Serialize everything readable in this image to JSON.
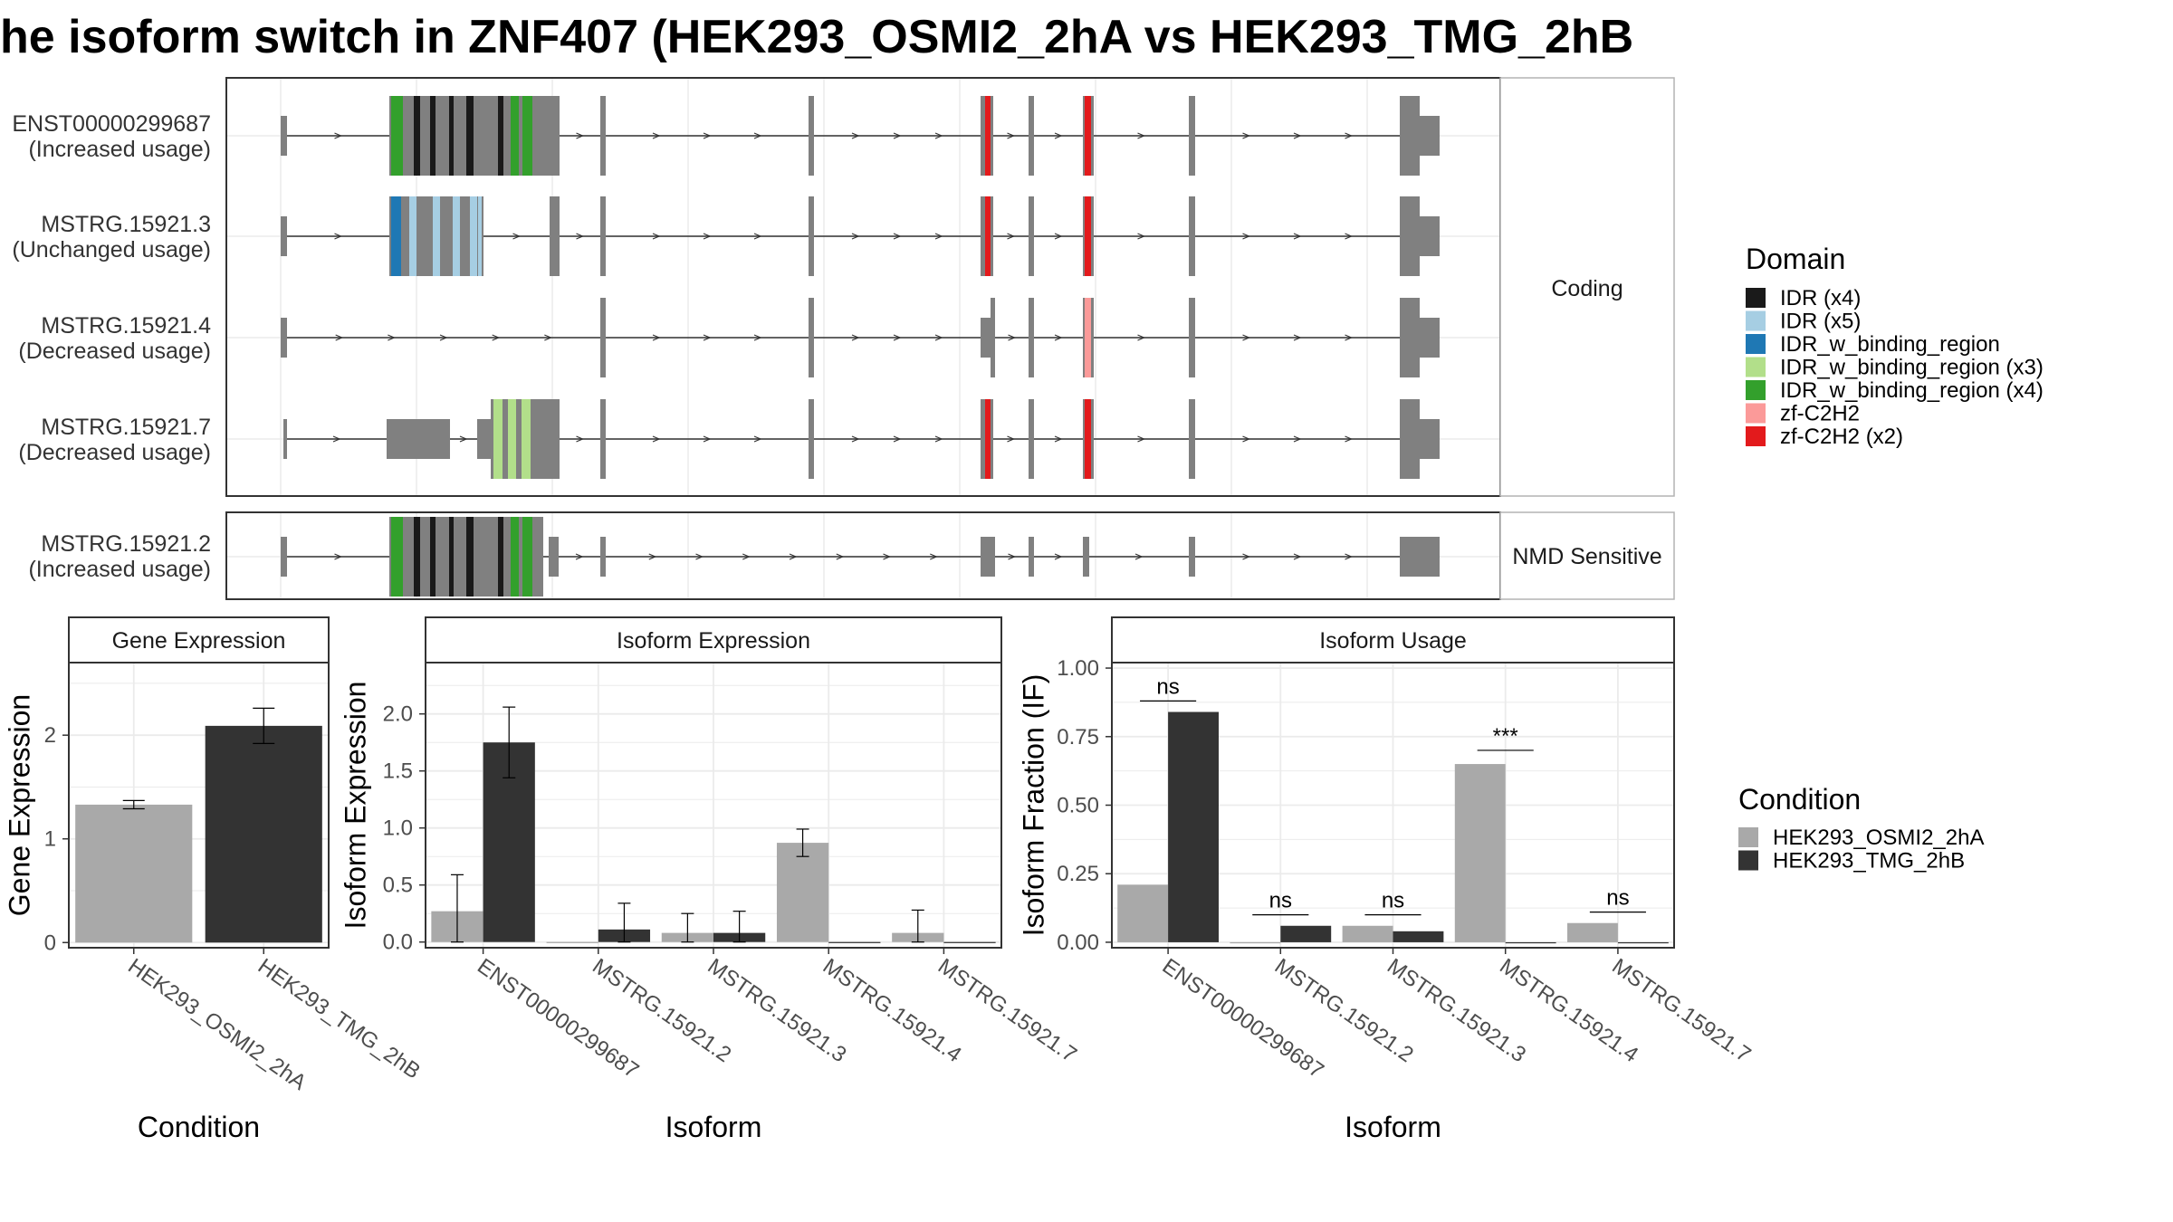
{
  "title": "he isoform switch in ZNF407 (HEK293_OSMI2_2hA vs HEK293_TMG_2hB",
  "colors": {
    "exon": "#808080",
    "osmi": "#A9A9A9",
    "tmg": "#333333",
    "panel_border": "#333333",
    "strip_border": "#b3b3b3",
    "grid": "#ebebeb"
  },
  "domain_legend": {
    "title": "Domain",
    "items": [
      {
        "label": "IDR (x4)",
        "color": "#1a1a1a"
      },
      {
        "label": "IDR (x5)",
        "color": "#a6cee3"
      },
      {
        "label": "IDR_w_binding_region",
        "color": "#1f78b4"
      },
      {
        "label": "IDR_w_binding_region (x3)",
        "color": "#b2df8a"
      },
      {
        "label": "IDR_w_binding_region (x4)",
        "color": "#33a02c"
      },
      {
        "label": "zf-C2H2",
        "color": "#fb9a99"
      },
      {
        "label": "zf-C2H2 (x2)",
        "color": "#e31a1c"
      }
    ]
  },
  "condition_legend": {
    "title": "Condition",
    "items": [
      {
        "label": "HEK293_OSMI2_2hA",
        "color": "#A9A9A9"
      },
      {
        "label": "HEK293_TMG_2hB",
        "color": "#333333"
      }
    ]
  },
  "transcripts": {
    "groups": [
      {
        "label": "Coding",
        "tracks": [
          {
            "id": "ENST00000299687",
            "status": "(Increased usage)"
          },
          {
            "id": "MSTRG.15921.3",
            "status": "(Unchanged usage)"
          },
          {
            "id": "MSTRG.15921.4",
            "status": "(Decreased usage)"
          },
          {
            "id": "MSTRG.15921.7",
            "status": "(Decreased usage)"
          }
        ]
      },
      {
        "label": "NMD Sensitive",
        "tracks": [
          {
            "id": "MSTRG.15921.2",
            "status": "(Increased usage)"
          }
        ]
      }
    ]
  },
  "chart_data": [
    {
      "type": "bar",
      "title": "Gene Expression",
      "xlabel": "Condition",
      "ylabel": "Gene Expression",
      "categories": [
        "HEK293_OSMI2_2hA",
        "HEK293_TMG_2hB"
      ],
      "values": [
        1.33,
        2.09
      ],
      "errors": [
        [
          1.29,
          1.37
        ],
        [
          1.92,
          2.26
        ]
      ],
      "ylim": [
        -0.05,
        2.7
      ],
      "yticks": [
        0,
        1,
        2
      ]
    },
    {
      "type": "bar",
      "title": "Isoform Expression",
      "xlabel": "Isoform",
      "ylabel": "Isoform Expression",
      "categories": [
        "ENST00000299687",
        "MSTRG.15921.2",
        "MSTRG.15921.3",
        "MSTRG.15921.4",
        "MSTRG.15921.7"
      ],
      "series": [
        {
          "name": "HEK293_OSMI2_2hA",
          "values": [
            0.27,
            0.0,
            0.08,
            0.87,
            0.08
          ],
          "errors": [
            [
              0.0,
              0.59
            ],
            null,
            [
              0.0,
              0.25
            ],
            [
              0.75,
              0.99
            ],
            [
              0.0,
              0.28
            ]
          ]
        },
        {
          "name": "HEK293_TMG_2hB",
          "values": [
            1.75,
            0.11,
            0.08,
            0.0,
            0.0
          ],
          "errors": [
            [
              1.44,
              2.06
            ],
            [
              0.0,
              0.34
            ],
            [
              0.0,
              0.27
            ],
            null,
            null
          ]
        }
      ],
      "ylim": [
        -0.05,
        2.45
      ],
      "yticks": [
        0.0,
        0.5,
        1.0,
        1.5,
        2.0
      ],
      "ytick_labels": [
        "0.0",
        "0.5",
        "1.0",
        "1.5",
        "2.0"
      ]
    },
    {
      "type": "bar",
      "title": "Isoform Usage",
      "xlabel": "Isoform",
      "ylabel": "Isoform Fraction (IF)",
      "categories": [
        "ENST00000299687",
        "MSTRG.15921.2",
        "MSTRG.15921.3",
        "MSTRG.15921.4",
        "MSTRG.15921.7"
      ],
      "series": [
        {
          "name": "HEK293_OSMI2_2hA",
          "values": [
            0.21,
            0.0,
            0.06,
            0.65,
            0.07
          ]
        },
        {
          "name": "HEK293_TMG_2hB",
          "values": [
            0.84,
            0.06,
            0.04,
            0.0,
            0.0
          ]
        }
      ],
      "significance": [
        {
          "label": "ns",
          "y": 0.88
        },
        {
          "label": "ns",
          "y": 0.1
        },
        {
          "label": "ns",
          "y": 0.1
        },
        {
          "label": "***",
          "y": 0.7
        },
        {
          "label": "ns",
          "y": 0.11
        }
      ],
      "ylim": [
        -0.02,
        1.02
      ],
      "yticks": [
        0.0,
        0.25,
        0.5,
        0.75,
        1.0
      ],
      "ytick_labels": [
        "0.00",
        "0.25",
        "0.50",
        "0.75",
        "1.00"
      ]
    }
  ]
}
